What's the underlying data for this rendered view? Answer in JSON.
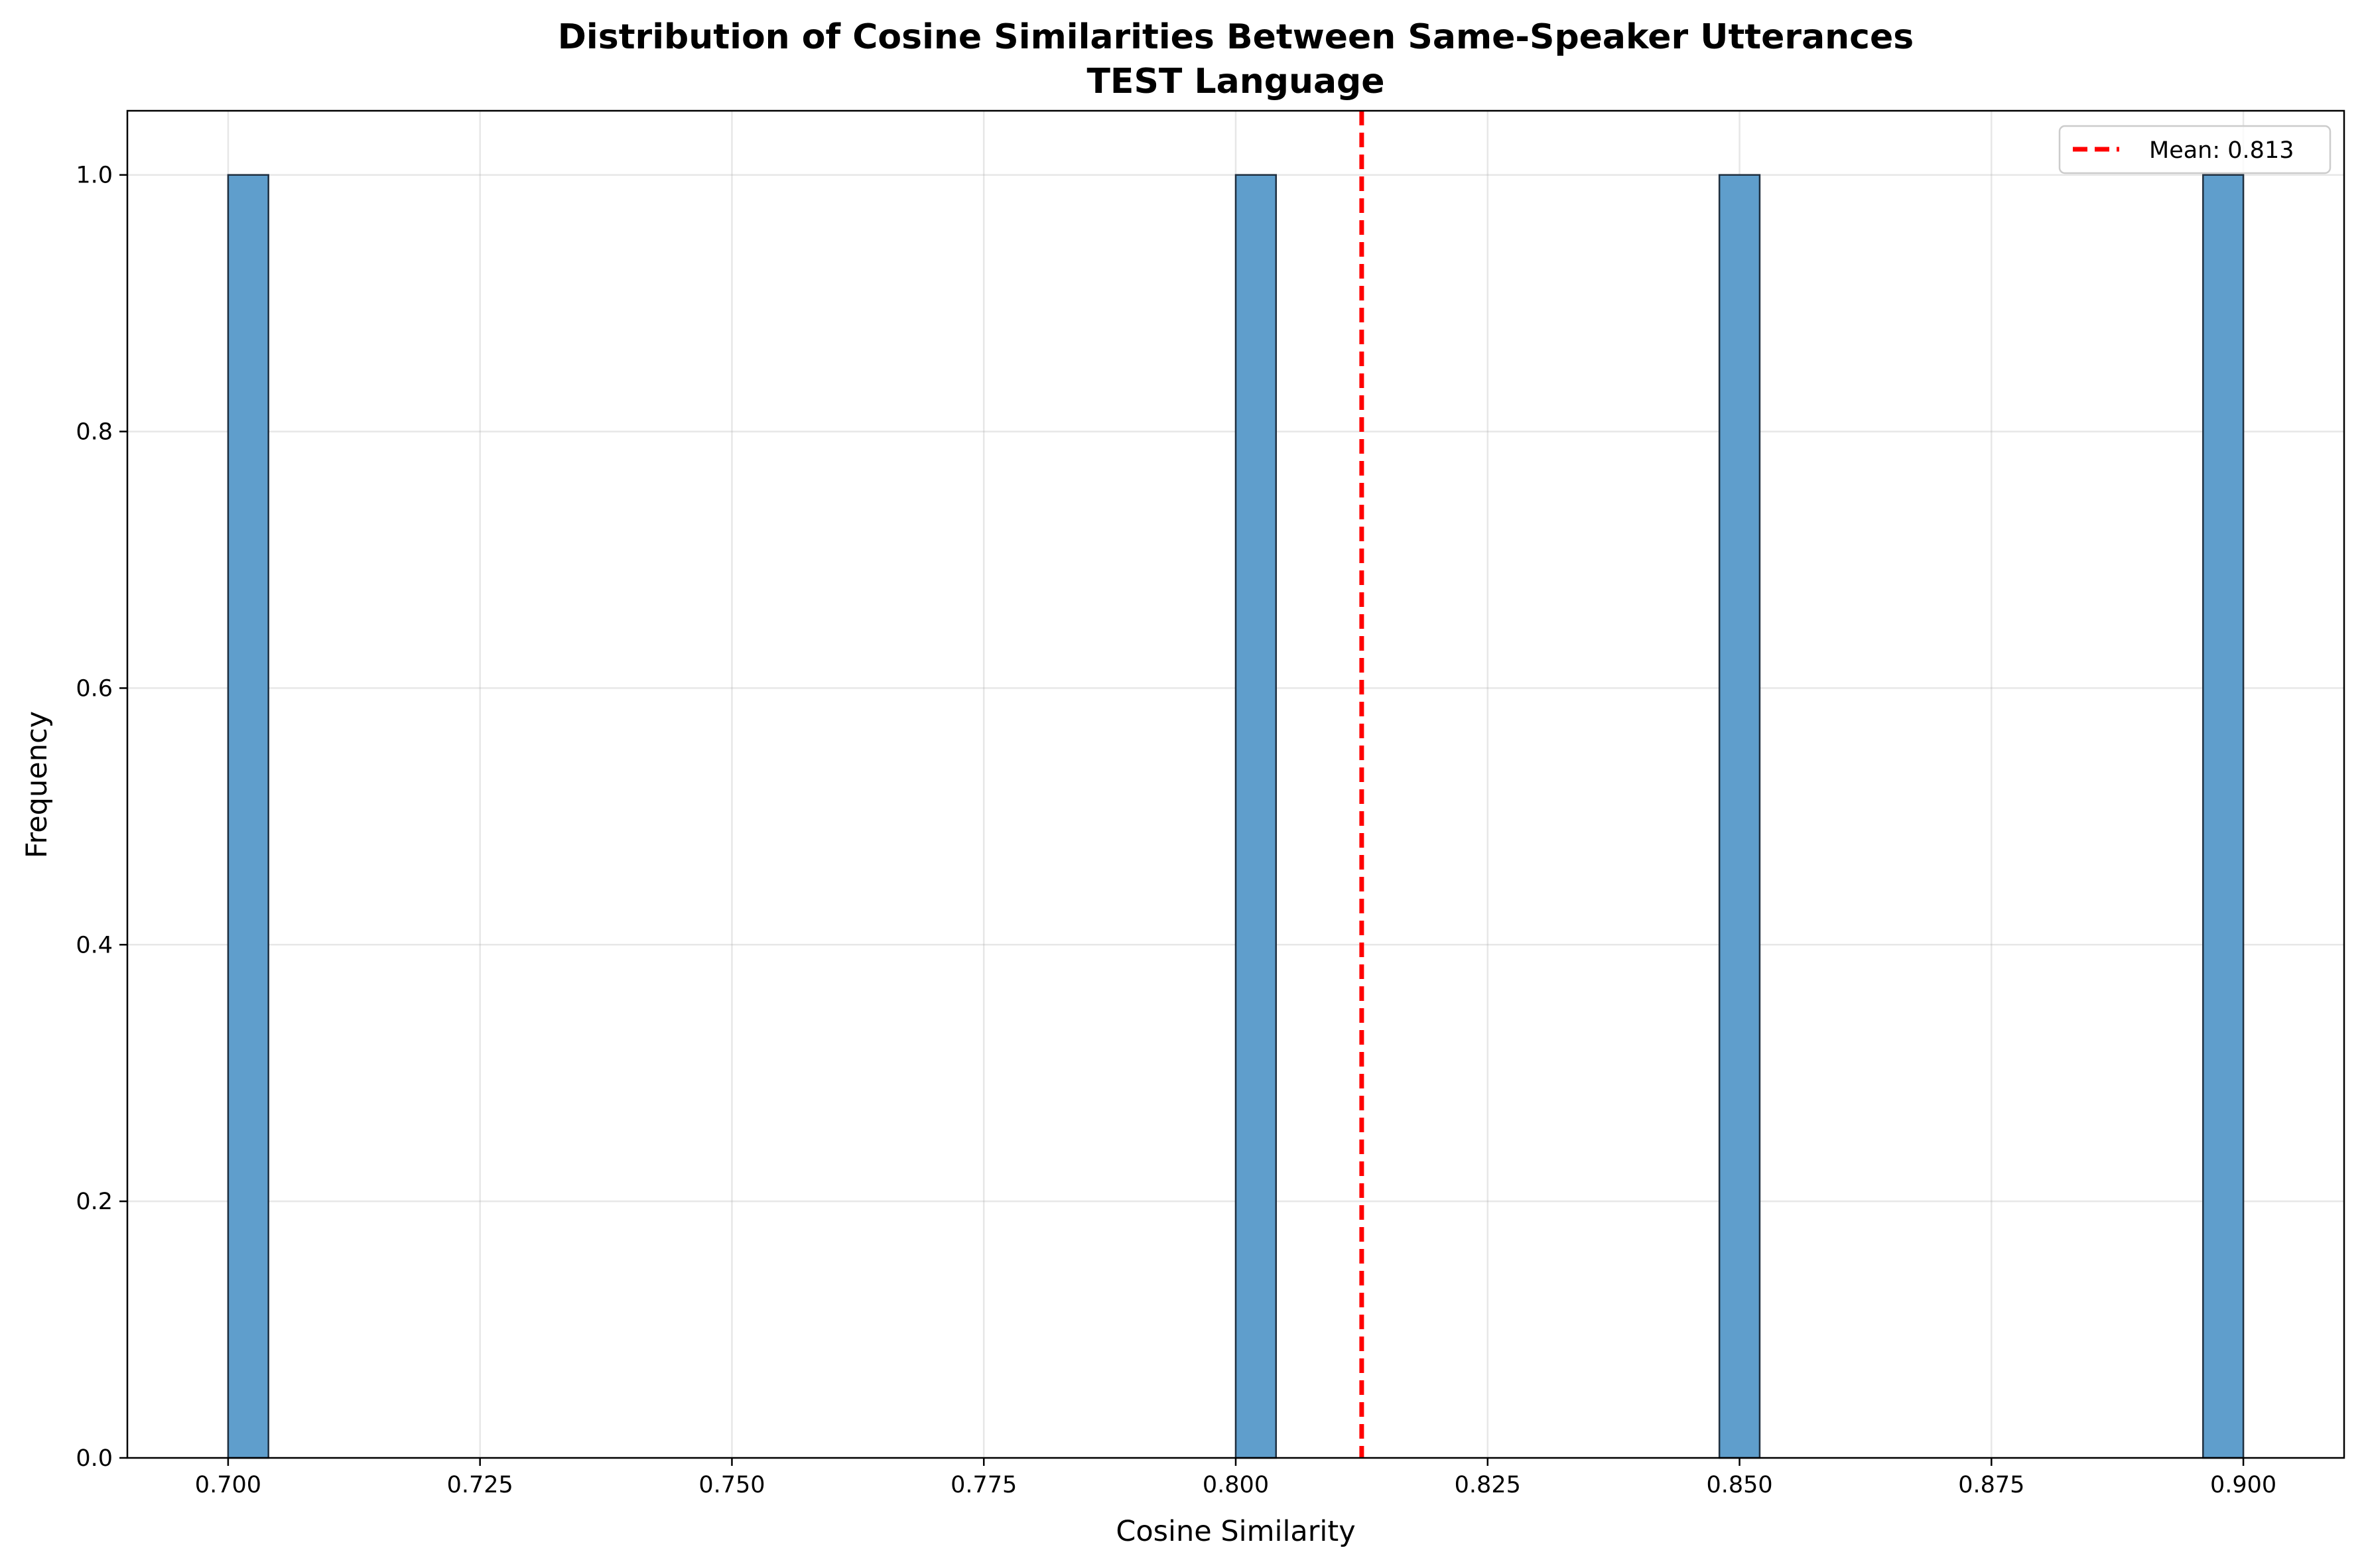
{
  "chart_data": {
    "type": "bar",
    "title": "Distribution of Cosine Similarities Between Same-Speaker Utterances",
    "subtitle": "TEST Language",
    "xlabel": "Cosine Similarity",
    "ylabel": "Frequency",
    "xlim": [
      0.69,
      0.91
    ],
    "ylim": [
      0.0,
      1.05
    ],
    "x_ticks": [
      "0.700",
      "0.725",
      "0.750",
      "0.775",
      "0.800",
      "0.825",
      "0.850",
      "0.875",
      "0.900"
    ],
    "y_ticks": [
      "0.0",
      "0.2",
      "0.4",
      "0.6",
      "0.8",
      "1.0"
    ],
    "grid": true,
    "bin_width": 0.004,
    "bins": [
      {
        "x_start": 0.7,
        "x_end": 0.704,
        "count": 1
      },
      {
        "x_start": 0.8,
        "x_end": 0.804,
        "count": 1
      },
      {
        "x_start": 0.848,
        "x_end": 0.852,
        "count": 1
      },
      {
        "x_start": 0.896,
        "x_end": 0.9,
        "count": 1
      }
    ],
    "mean_line": {
      "value": 0.8125,
      "label": "Mean: 0.813"
    },
    "legend": {
      "position": "top-right",
      "entries": [
        "Mean: 0.813"
      ]
    },
    "colors": {
      "bar_fill": "#5f9ecc",
      "bar_edge": "#1f2f3f",
      "mean_line": "#ff0000"
    }
  }
}
